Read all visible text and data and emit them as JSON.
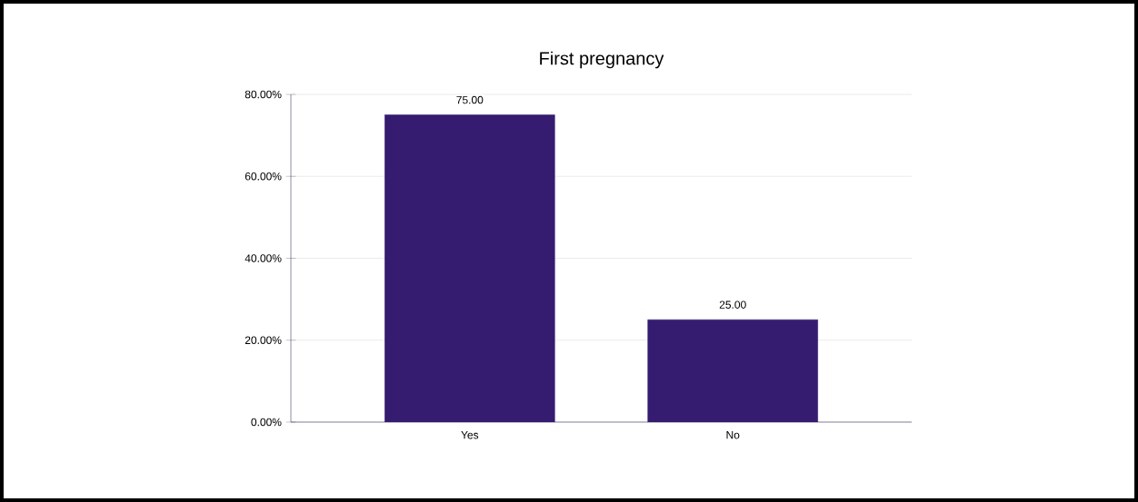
{
  "chart_data": {
    "type": "bar",
    "title": "First pregnancy",
    "categories": [
      "Yes",
      "No"
    ],
    "values": [
      75,
      25
    ],
    "value_labels": [
      "75.00",
      "25.00"
    ],
    "color": "#351c70",
    "ylim": [
      0,
      80
    ],
    "yticks": [
      {
        "value": 0,
        "label": "0.00%"
      },
      {
        "value": 20,
        "label": "20.00%"
      },
      {
        "value": 40,
        "label": "40.00%"
      },
      {
        "value": 60,
        "label": "60.00%"
      },
      {
        "value": 80,
        "label": "80.00%"
      }
    ],
    "grid": "y"
  }
}
